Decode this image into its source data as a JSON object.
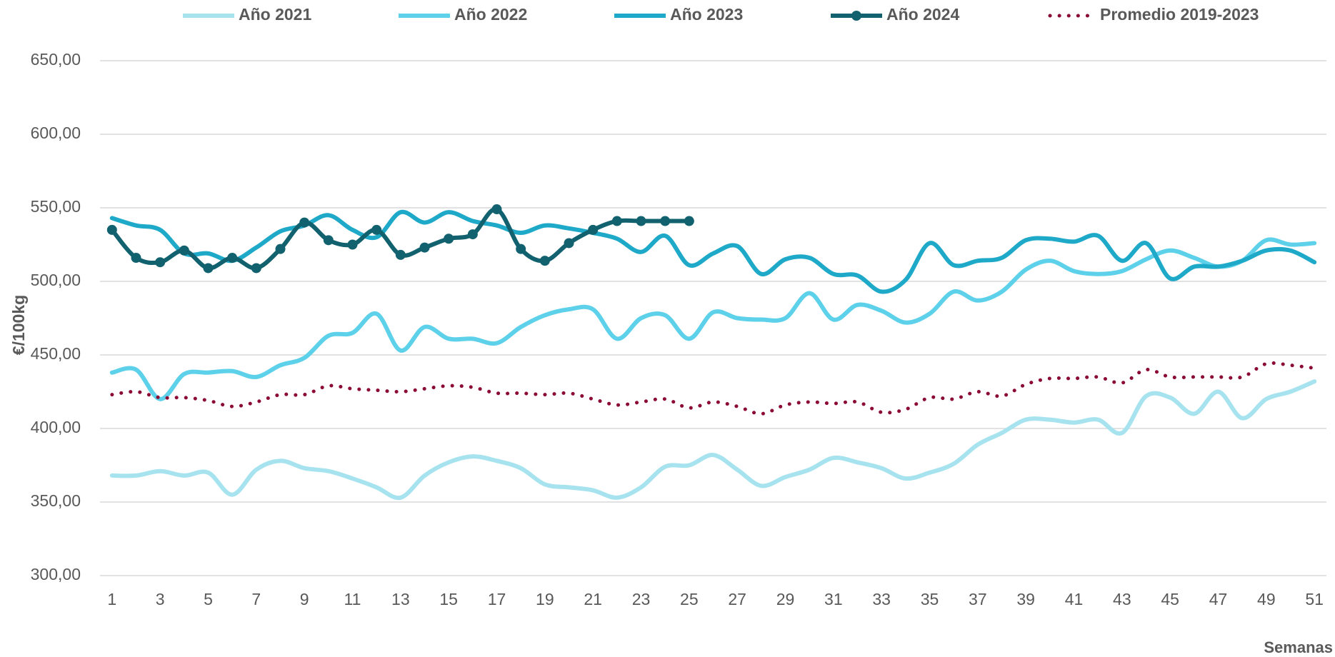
{
  "chart_data": {
    "type": "line",
    "categories": [
      "1",
      null,
      "3",
      null,
      "5",
      null,
      "7",
      null,
      "9",
      null,
      "11",
      null,
      "13",
      null,
      "15",
      null,
      "17",
      null,
      "19",
      null,
      "21",
      null,
      "23",
      null,
      "25",
      null,
      "27",
      null,
      "29",
      null,
      "31",
      null,
      "33",
      null,
      "35",
      null,
      "37",
      null,
      "39",
      null,
      "41",
      null,
      "43",
      null,
      "45",
      null,
      "47",
      null,
      "49",
      null,
      "51"
    ],
    "x_label": "Semanas",
    "y_label": "€/100kg",
    "ylim": [
      300,
      650
    ],
    "yticks": [
      {
        "value": 300,
        "label": "300,00"
      },
      {
        "value": 350,
        "label": "350,00"
      },
      {
        "value": 400,
        "label": "400,00"
      },
      {
        "value": 450,
        "label": "450,00"
      },
      {
        "value": 500,
        "label": "500,00"
      },
      {
        "value": 550,
        "label": "550,00"
      },
      {
        "value": 600,
        "label": "600,00"
      },
      {
        "value": 650,
        "label": "650,00"
      }
    ],
    "grid": true,
    "legend": "top",
    "smooth": true,
    "series": [
      {
        "name": "Año 2021",
        "color": "#a6e3ef",
        "values": [
          368,
          368,
          371,
          368,
          370,
          355,
          372,
          378,
          373,
          371,
          366,
          360,
          353,
          368,
          377,
          381,
          378,
          373,
          362,
          360,
          358,
          353,
          360,
          374,
          375,
          382,
          372,
          361,
          367,
          372,
          380,
          377,
          373,
          366,
          370,
          376,
          389,
          397,
          406,
          406,
          404,
          406,
          397,
          422,
          421,
          410,
          425,
          407,
          420,
          425,
          432
        ]
      },
      {
        "name": "Año 2022",
        "color": "#5dd0ea",
        "values": [
          438,
          440,
          420,
          437,
          438,
          439,
          435,
          443,
          448,
          463,
          465,
          478,
          453,
          469,
          461,
          461,
          458,
          469,
          477,
          481,
          481,
          461,
          475,
          477,
          461,
          479,
          475,
          474,
          475,
          492,
          474,
          484,
          480,
          472,
          478,
          493,
          487,
          493,
          508,
          514,
          507,
          505,
          507,
          515,
          521,
          516,
          510,
          514,
          528,
          525,
          526
        ]
      },
      {
        "name": "Año 2023",
        "color": "#1fa9c8",
        "values": [
          543,
          538,
          535,
          519,
          519,
          514,
          523,
          534,
          538,
          545,
          535,
          530,
          547,
          540,
          547,
          541,
          538,
          533,
          538,
          536,
          533,
          529,
          520,
          531,
          511,
          519,
          524,
          505,
          515,
          516,
          505,
          504,
          493,
          501,
          526,
          511,
          514,
          516,
          528,
          529,
          527,
          531,
          514,
          526,
          502,
          510,
          510,
          514,
          521,
          521,
          513
        ]
      },
      {
        "name": "Año 2024",
        "color": "#12616f",
        "marker": "circle",
        "values": [
          535,
          516,
          513,
          521,
          509,
          516,
          509,
          522,
          540,
          528,
          525,
          535,
          518,
          523,
          529,
          532,
          549,
          522,
          514,
          526,
          535,
          541,
          541,
          541,
          541,
          null,
          null,
          null,
          null,
          null,
          null,
          null,
          null,
          null,
          null,
          null,
          null,
          null,
          null,
          null,
          null,
          null,
          null,
          null,
          null,
          null,
          null,
          null,
          null,
          null,
          null
        ]
      },
      {
        "name": "Promedio 2019-2023",
        "color": "#8b0a35",
        "dash": "dotted",
        "values": [
          423,
          425,
          421,
          421,
          419,
          415,
          418,
          423,
          423,
          429,
          427,
          426,
          425,
          427,
          429,
          428,
          424,
          424,
          423,
          424,
          420,
          416,
          418,
          420,
          414,
          418,
          415,
          410,
          416,
          418,
          417,
          418,
          411,
          413,
          421,
          420,
          425,
          422,
          430,
          434,
          434,
          435,
          431,
          440,
          435,
          435,
          435,
          435,
          444,
          443,
          441
        ]
      }
    ]
  }
}
